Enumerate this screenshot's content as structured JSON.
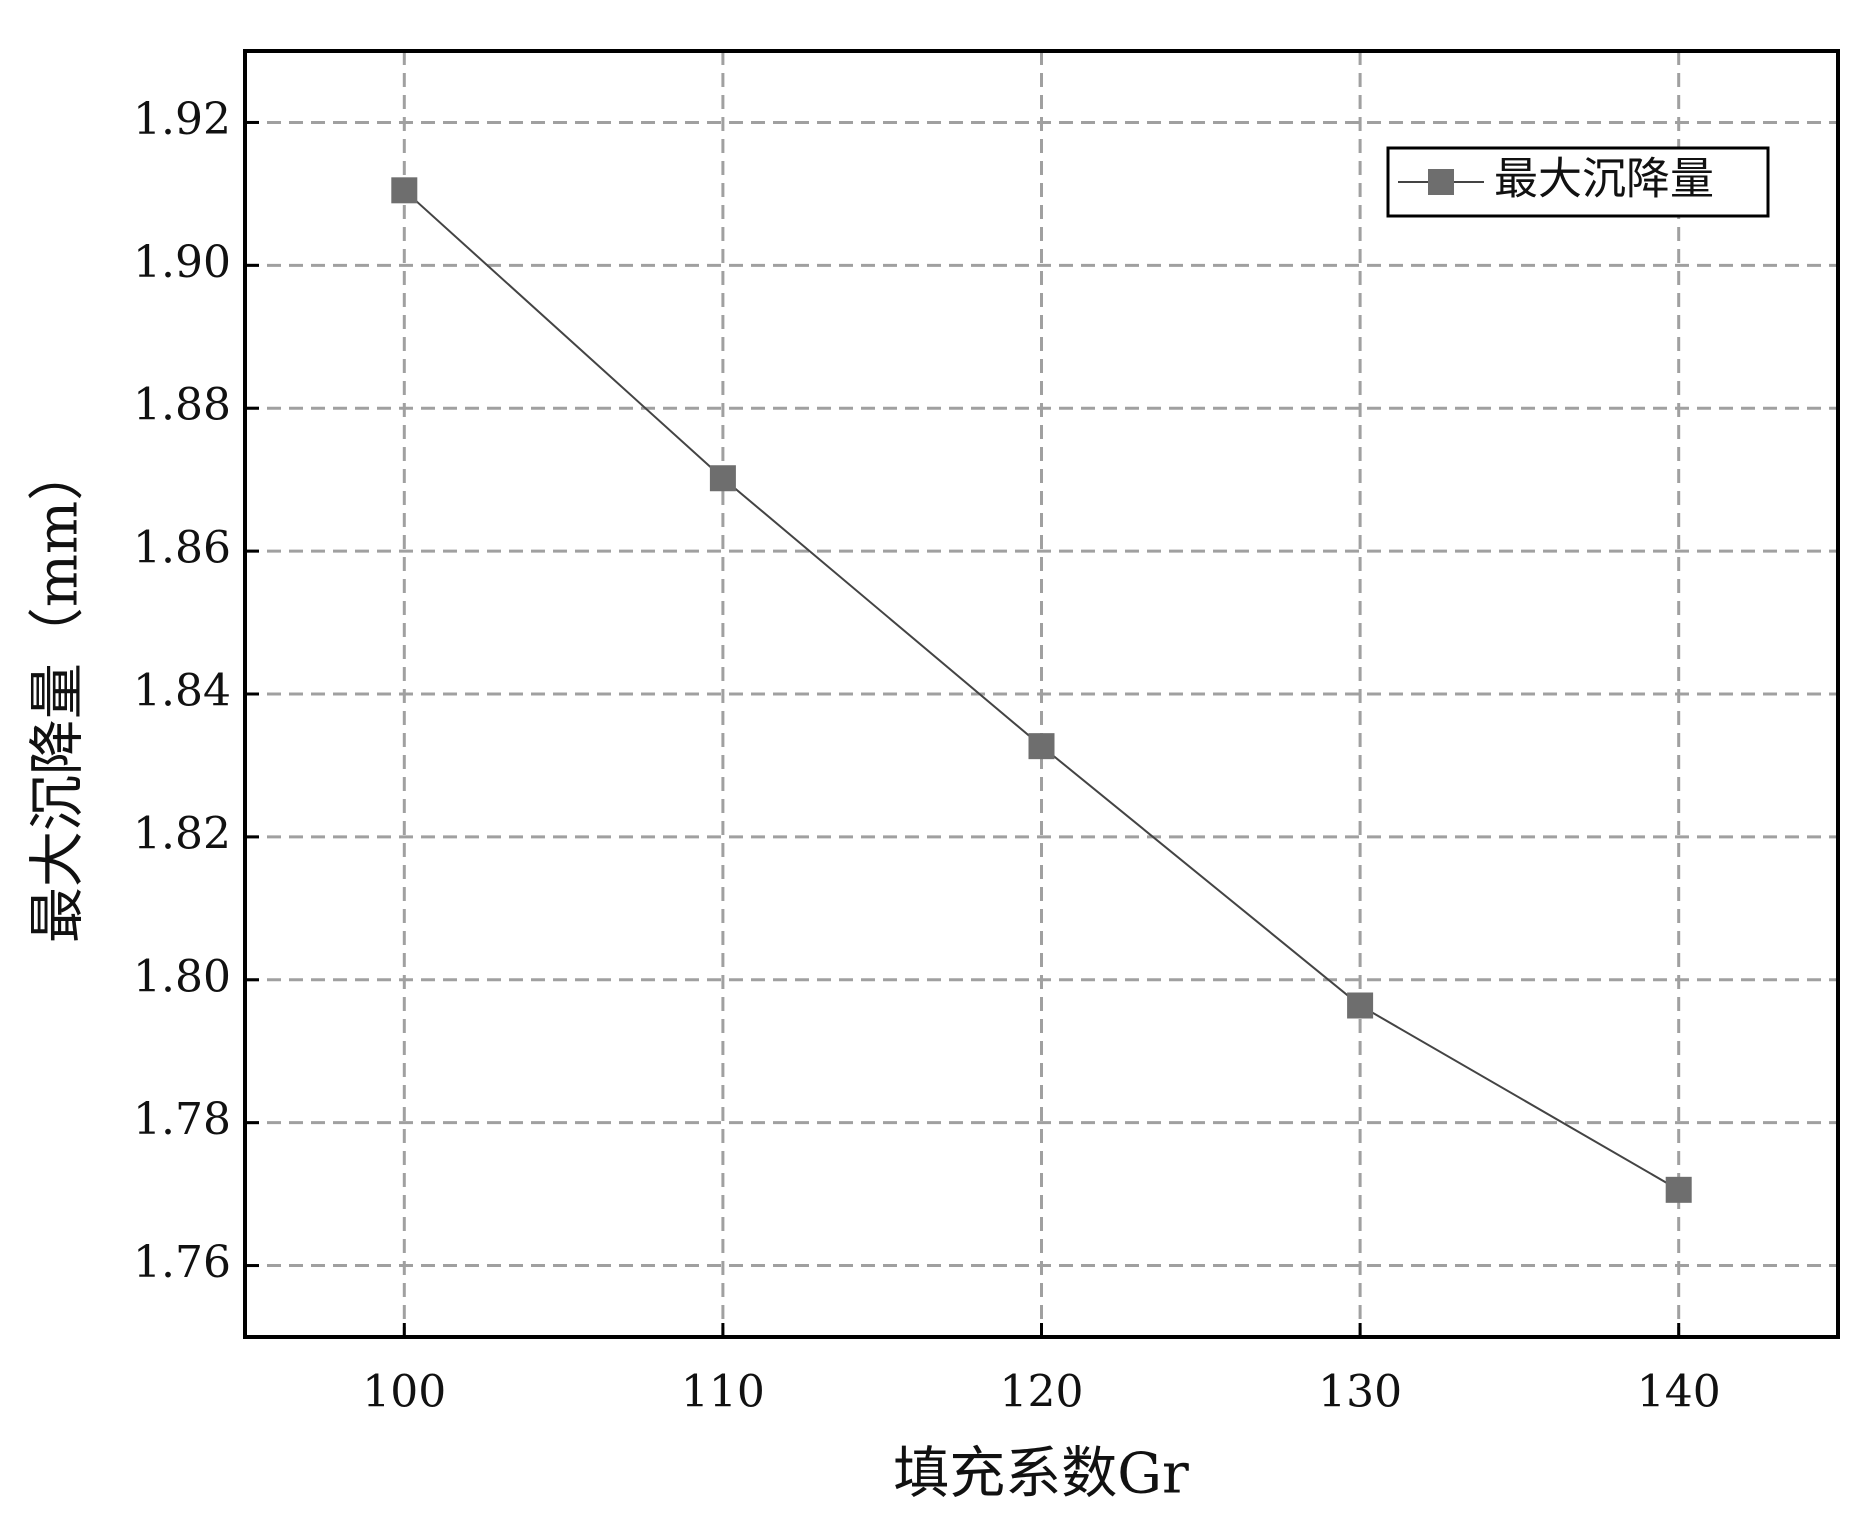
{
  "chart_data": {
    "type": "line",
    "x_label": "填充系数Gr",
    "y_label": "最大沉降量（mm）",
    "x": [
      100,
      110,
      120,
      130,
      140
    ],
    "series": [
      {
        "name": "最大沉降量",
        "color": "#6e6e6e",
        "values": [
          1.9105,
          1.8702,
          1.8327,
          1.7964,
          1.7706
        ]
      }
    ],
    "xlim": [
      95,
      145
    ],
    "xticks": [
      100,
      110,
      120,
      130,
      140
    ],
    "ylim": [
      1.75,
      1.93
    ],
    "yticks": [
      1.76,
      1.78,
      {
        "value": 1.8,
        "label": "1.80"
      },
      1.82,
      1.84,
      1.86,
      1.88,
      {
        "value": 1.9,
        "label": "1.90"
      },
      1.92
    ],
    "grid": true,
    "legend": "upper right"
  }
}
